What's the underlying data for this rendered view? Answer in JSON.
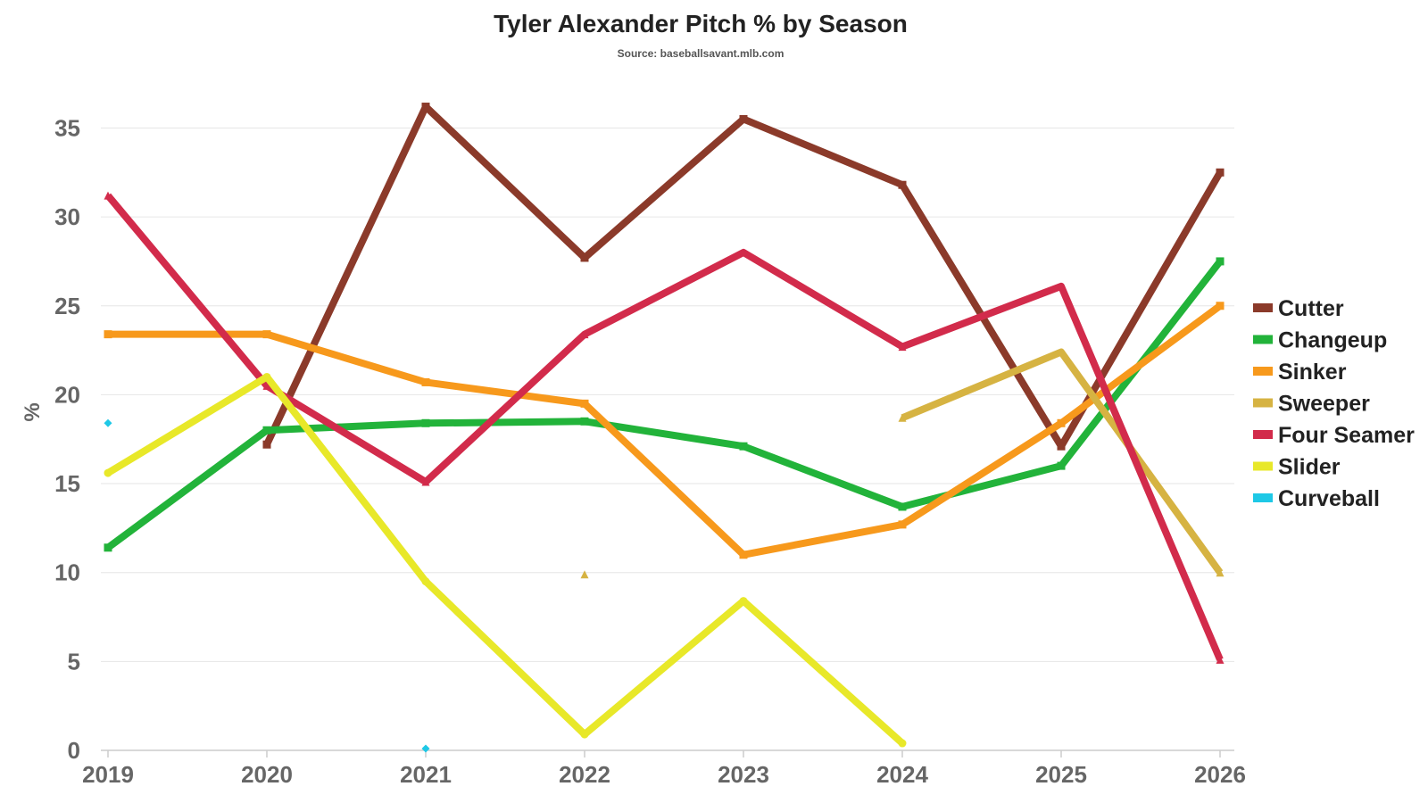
{
  "chart_data": {
    "type": "line",
    "title": "Tyler Alexander Pitch % by Season",
    "subtitle": "Source: baseballsavant.mlb.com",
    "xlabel": "",
    "ylabel": "%",
    "x": [
      "2019",
      "2020",
      "2021",
      "2022",
      "2023",
      "2024",
      "2025",
      "2026"
    ],
    "ylim": [
      0,
      35
    ],
    "yticks": [
      0,
      5,
      10,
      15,
      20,
      25,
      30,
      35
    ],
    "grid": true,
    "legend_position": "right",
    "series": [
      {
        "name": "Cutter",
        "color": "#8B3A2A",
        "marker": "square",
        "values": [
          null,
          17.2,
          36.2,
          27.7,
          35.5,
          31.8,
          17.1,
          32.5
        ]
      },
      {
        "name": "Changeup",
        "color": "#22B33A",
        "marker": "square",
        "values": [
          11.4,
          18.0,
          18.4,
          18.5,
          17.1,
          13.7,
          16.0,
          27.5
        ]
      },
      {
        "name": "Sinker",
        "color": "#F7991C",
        "marker": "square",
        "values": [
          23.4,
          23.4,
          20.7,
          19.5,
          11.0,
          12.7,
          18.4,
          25.0
        ]
      },
      {
        "name": "Sweeper",
        "color": "#D6B342",
        "marker": "triangle",
        "values": [
          null,
          null,
          null,
          9.9,
          null,
          18.7,
          22.4,
          10.0
        ]
      },
      {
        "name": "Four Seamer",
        "color": "#D22B4B",
        "marker": "triangle",
        "values": [
          31.2,
          20.5,
          15.1,
          23.4,
          28.0,
          22.7,
          26.1,
          5.1
        ]
      },
      {
        "name": "Slider",
        "color": "#E8E829",
        "marker": "circle",
        "values": [
          15.6,
          21.0,
          9.5,
          0.9,
          8.4,
          0.4,
          null,
          null
        ]
      },
      {
        "name": "Curveball",
        "color": "#1EC8E6",
        "marker": "diamond",
        "values": [
          18.4,
          null,
          0.1,
          null,
          null,
          null,
          null,
          null
        ]
      }
    ]
  }
}
